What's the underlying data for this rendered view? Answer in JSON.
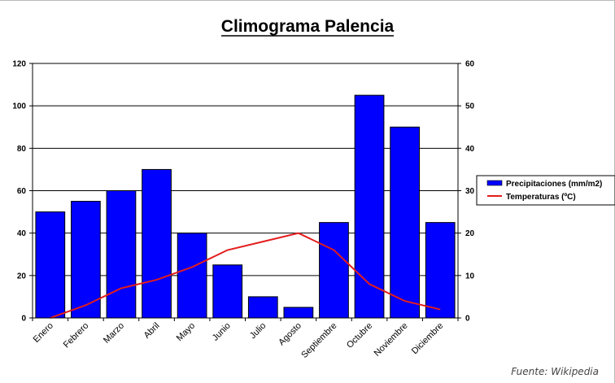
{
  "chart_data": {
    "type": "bar",
    "title": "Climograma Palencia",
    "categories": [
      "Enero",
      "Febrero",
      "Marzo",
      "Abril",
      "Mayo",
      "Junio",
      "Julio",
      "Agosto",
      "Septiembre",
      "Octubre",
      "Noviembre",
      "Diciembre"
    ],
    "series": [
      {
        "name": "Precipitaciones (mm/m2)",
        "type": "bar",
        "axis": "left",
        "color": "#0000ff",
        "values": [
          50,
          55,
          60,
          70,
          40,
          25,
          10,
          5,
          45,
          105,
          90,
          45
        ]
      },
      {
        "name": "Temperaturas (ºC)",
        "type": "line",
        "axis": "right",
        "color": "#e31d1d",
        "values": [
          0,
          3,
          7,
          9,
          12,
          16,
          18,
          20,
          16,
          8,
          4,
          2
        ]
      }
    ],
    "y_left": {
      "min": 0,
      "max": 120,
      "ticks": [
        0,
        20,
        40,
        60,
        80,
        100,
        120
      ]
    },
    "y_right": {
      "min": 0,
      "max": 60,
      "ticks": [
        0,
        10,
        20,
        30,
        40,
        50,
        60
      ]
    },
    "grid": true,
    "legend_position": "right",
    "source": "Fuente: Wikipedia"
  }
}
